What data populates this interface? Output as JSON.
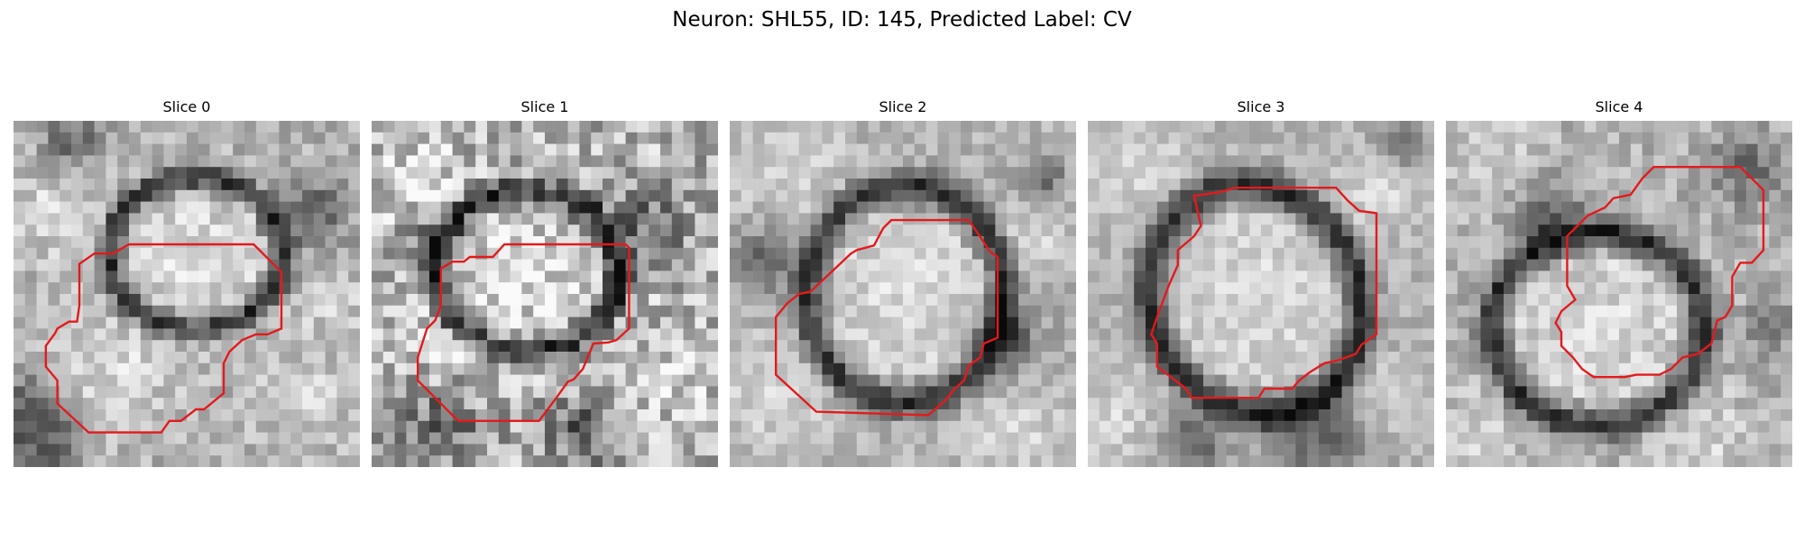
{
  "figure": {
    "title": "Neuron: SHL55, ID: 145, Predicted Label: CV"
  },
  "panels": [
    {
      "title": "Slice 0"
    },
    {
      "title": "Slice 1"
    },
    {
      "title": "Slice 2"
    },
    {
      "title": "Slice 3"
    },
    {
      "title": "Slice 4"
    }
  ],
  "contour_color": "#e31a1c",
  "colormap": "gray"
}
